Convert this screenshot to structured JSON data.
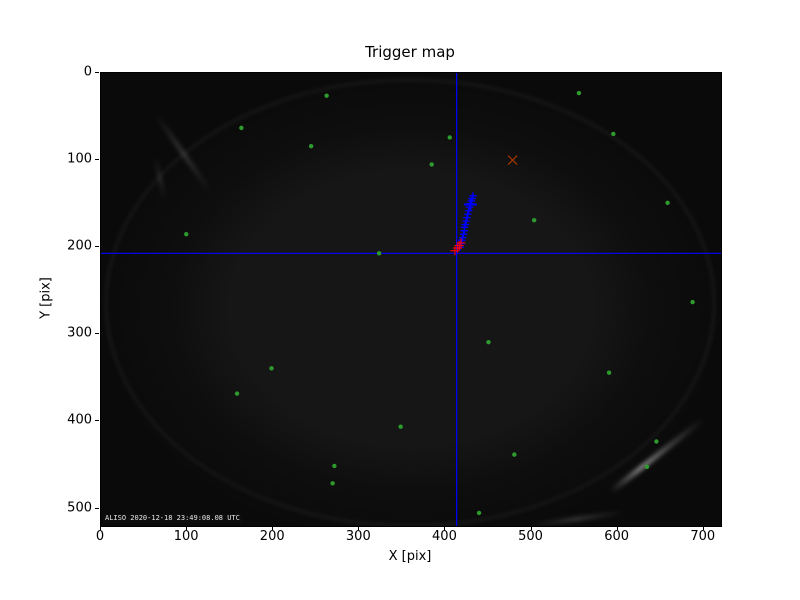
{
  "chart_data": {
    "type": "scatter",
    "title": "Trigger map",
    "xlabel": "X [pix]",
    "ylabel": "Y [pix]",
    "xlim": [
      0,
      720
    ],
    "ylim": [
      520,
      0
    ],
    "x_ticks": [
      0,
      100,
      200,
      300,
      400,
      500,
      600,
      700
    ],
    "y_ticks": [
      0,
      100,
      200,
      300,
      400,
      500
    ],
    "grid": false,
    "legend": false,
    "plot_bg": "#0e0e0e",
    "crosshair": {
      "x": 413,
      "y": 207,
      "color": "#0000ff",
      "lw": 1.2
    },
    "watermark": "ALISO 2020-12-18 23:49:08.08 UTC",
    "series": [
      {
        "name": "stars",
        "marker": "dot",
        "color": "#2e9b2e",
        "size": 2.2,
        "lw": 0,
        "points": [
          [
            163,
            63
          ],
          [
            262,
            26
          ],
          [
            244,
            84
          ],
          [
            384,
            105
          ],
          [
            405,
            74
          ],
          [
            555,
            23
          ],
          [
            595,
            70
          ],
          [
            658,
            149
          ],
          [
            99,
            185
          ],
          [
            323,
            207
          ],
          [
            503,
            169
          ],
          [
            687,
            263
          ],
          [
            450,
            309
          ],
          [
            590,
            344
          ],
          [
            198,
            339
          ],
          [
            158,
            368
          ],
          [
            348,
            406
          ],
          [
            271,
            451
          ],
          [
            480,
            438
          ],
          [
            645,
            423
          ],
          [
            634,
            452
          ],
          [
            269,
            471
          ],
          [
            439,
            505
          ]
        ]
      },
      {
        "name": "track",
        "marker": "plus",
        "color": "#0000ff",
        "size": 3.8,
        "lw": 1.3,
        "points": [
          [
            417,
            200
          ],
          [
            418,
            196
          ],
          [
            419,
            192
          ],
          [
            420,
            189
          ],
          [
            421,
            185
          ],
          [
            422,
            181
          ],
          [
            422,
            177
          ],
          [
            423,
            174
          ],
          [
            424,
            170
          ],
          [
            425,
            166
          ],
          [
            426,
            162
          ],
          [
            427,
            158
          ],
          [
            428,
            154
          ],
          [
            429,
            150
          ],
          [
            430,
            147
          ],
          [
            431,
            144
          ],
          [
            432,
            141
          ]
        ]
      },
      {
        "name": "track-head",
        "marker": "plus",
        "color": "#0000ff",
        "size": 6.5,
        "lw": 2,
        "points": [
          [
            429,
            151
          ]
        ]
      },
      {
        "name": "triggers",
        "marker": "plus",
        "color": "#ff0000",
        "size": 4.5,
        "lw": 1.1,
        "points": [
          [
            411,
            204
          ],
          [
            414,
            201
          ],
          [
            416,
            198
          ],
          [
            418,
            195
          ]
        ]
      },
      {
        "name": "flagged",
        "marker": "x",
        "color": "#993300",
        "size": 4.5,
        "lw": 1.3,
        "points": [
          [
            478,
            100
          ]
        ]
      }
    ]
  }
}
